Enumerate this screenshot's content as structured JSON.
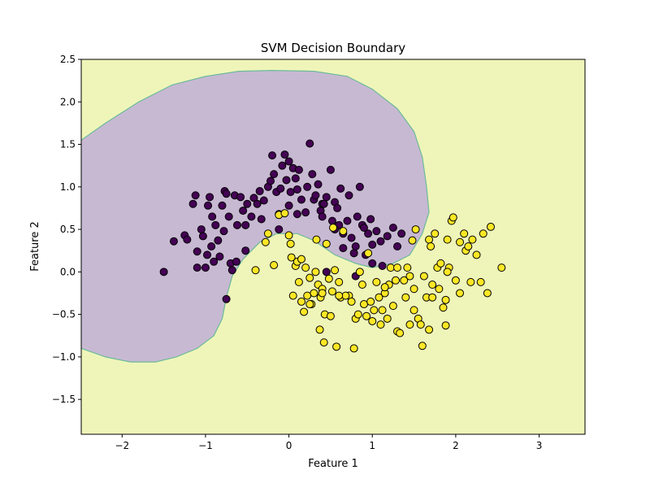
{
  "chart_data": {
    "type": "scatter",
    "title": "SVM Decision Boundary",
    "xlabel": "Feature 1",
    "ylabel": "Feature 2",
    "xlim": [
      -2.49,
      3.55
    ],
    "ylim": [
      -1.91,
      2.5
    ],
    "xticks": [
      -2,
      -1,
      0,
      1,
      2,
      3
    ],
    "xtick_labels": [
      "−2",
      "−1",
      "0",
      "1",
      "2",
      "3"
    ],
    "yticks": [
      -1.5,
      -1.0,
      -0.5,
      0.0,
      0.5,
      1.0,
      1.5,
      2.0,
      2.5
    ],
    "ytick_labels": [
      "−1.5",
      "−1.0",
      "−0.5",
      "0.0",
      "0.5",
      "1.0",
      "1.5",
      "2.0",
      "2.5"
    ],
    "grid": false,
    "colors": {
      "class0": "#440154",
      "class1": "#fde725",
      "region0": "#c8b9d3",
      "region1": "#eff5b9",
      "boundary": "#6cba9a"
    },
    "decision_region_class0": [
      [
        -2.49,
        1.55
      ],
      [
        -2.2,
        1.75
      ],
      [
        -1.8,
        2.0
      ],
      [
        -1.4,
        2.2
      ],
      [
        -1.0,
        2.3
      ],
      [
        -0.6,
        2.36
      ],
      [
        -0.2,
        2.37
      ],
      [
        0.3,
        2.36
      ],
      [
        0.7,
        2.3
      ],
      [
        1.0,
        2.15
      ],
      [
        1.3,
        1.92
      ],
      [
        1.5,
        1.65
      ],
      [
        1.6,
        1.35
      ],
      [
        1.65,
        1.0
      ],
      [
        1.68,
        0.7
      ],
      [
        1.6,
        0.45
      ],
      [
        1.45,
        0.2
      ],
      [
        1.25,
        0.1
      ],
      [
        1.0,
        0.05
      ],
      [
        0.8,
        0.1
      ],
      [
        0.55,
        0.2
      ],
      [
        0.3,
        0.37
      ],
      [
        0.1,
        0.45
      ],
      [
        -0.15,
        0.45
      ],
      [
        -0.35,
        0.35
      ],
      [
        -0.55,
        0.15
      ],
      [
        -0.68,
        -0.05
      ],
      [
        -0.75,
        -0.3
      ],
      [
        -0.8,
        -0.55
      ],
      [
        -0.9,
        -0.75
      ],
      [
        -1.1,
        -0.9
      ],
      [
        -1.35,
        -1.0
      ],
      [
        -1.6,
        -1.06
      ],
      [
        -1.9,
        -1.06
      ],
      [
        -2.2,
        -1.0
      ],
      [
        -2.49,
        -0.9
      ]
    ],
    "series": [
      {
        "name": "class 0",
        "points": [
          [
            -1.5,
            0.0
          ],
          [
            -1.38,
            0.36
          ],
          [
            -1.25,
            0.43
          ],
          [
            -1.22,
            0.38
          ],
          [
            -1.15,
            0.8
          ],
          [
            -1.12,
            0.9
          ],
          [
            -1.1,
            0.05
          ],
          [
            -1.1,
            0.24
          ],
          [
            -1.05,
            0.5
          ],
          [
            -1.03,
            0.42
          ],
          [
            -1.0,
            0.05
          ],
          [
            -0.98,
            0.2
          ],
          [
            -0.97,
            0.78
          ],
          [
            -0.95,
            0.88
          ],
          [
            -0.93,
            0.3
          ],
          [
            -0.92,
            0.65
          ],
          [
            -0.9,
            0.12
          ],
          [
            -0.88,
            0.55
          ],
          [
            -0.85,
            0.37
          ],
          [
            -0.83,
            0.18
          ],
          [
            -0.8,
            0.78
          ],
          [
            -0.78,
            0.48
          ],
          [
            -0.77,
            0.95
          ],
          [
            -0.75,
            0.92
          ],
          [
            -0.72,
            0.65
          ],
          [
            -0.7,
            0.1
          ],
          [
            -0.68,
            0.02
          ],
          [
            -0.65,
            0.9
          ],
          [
            -0.63,
            0.12
          ],
          [
            -0.62,
            0.55
          ],
          [
            -0.58,
            0.88
          ],
          [
            -0.55,
            0.72
          ],
          [
            -0.52,
            0.25
          ],
          [
            -0.5,
            0.8
          ],
          [
            -0.45,
            0.65
          ],
          [
            -0.42,
            0.87
          ],
          [
            -0.38,
            0.8
          ],
          [
            -0.35,
            0.95
          ],
          [
            -0.33,
            0.62
          ],
          [
            -0.3,
            0.84
          ],
          [
            -0.25,
            1.0
          ],
          [
            -0.22,
            1.07
          ],
          [
            -0.2,
            1.37
          ],
          [
            -0.18,
            1.15
          ],
          [
            -0.15,
            0.94
          ],
          [
            -0.12,
            0.5
          ],
          [
            -0.1,
            0.98
          ],
          [
            -0.08,
            1.25
          ],
          [
            -0.05,
            1.38
          ],
          [
            -0.03,
            1.08
          ],
          [
            0.0,
            1.3
          ],
          [
            0.02,
            0.94
          ],
          [
            0.05,
            1.22
          ],
          [
            0.08,
            1.1
          ],
          [
            0.1,
            0.97
          ],
          [
            0.12,
            1.2
          ],
          [
            0.15,
            0.85
          ],
          [
            0.2,
            0.7
          ],
          [
            0.22,
            1.0
          ],
          [
            0.25,
            1.51
          ],
          [
            0.28,
            1.15
          ],
          [
            0.3,
            0.85
          ],
          [
            0.32,
            0.9
          ],
          [
            0.35,
            1.03
          ],
          [
            0.38,
            0.72
          ],
          [
            0.4,
            0.8
          ],
          [
            0.42,
            0.8
          ],
          [
            0.45,
            0.88
          ],
          [
            0.5,
            1.2
          ],
          [
            0.52,
            0.6
          ],
          [
            0.55,
            0.82
          ],
          [
            0.58,
            0.75
          ],
          [
            0.6,
            0.55
          ],
          [
            0.62,
            0.98
          ],
          [
            0.65,
            0.45
          ],
          [
            0.7,
            0.6
          ],
          [
            0.72,
            0.9
          ],
          [
            0.75,
            0.4
          ],
          [
            0.78,
            0.22
          ],
          [
            0.8,
            0.3
          ],
          [
            0.82,
            0.65
          ],
          [
            0.85,
            1.0
          ],
          [
            0.88,
            0.55
          ],
          [
            0.9,
            0.52
          ],
          [
            0.92,
            0.2
          ],
          [
            0.95,
            0.45
          ],
          [
            0.98,
            0.62
          ],
          [
            1.0,
            0.32
          ],
          [
            1.05,
            0.48
          ],
          [
            1.1,
            0.36
          ],
          [
            1.12,
            0.07
          ],
          [
            1.18,
            0.42
          ],
          [
            1.25,
            0.52
          ],
          [
            1.3,
            0.3
          ],
          [
            1.35,
            0.45
          ],
          [
            -0.75,
            -0.32
          ],
          [
            -0.12,
            0.68
          ],
          [
            0.0,
            0.78
          ],
          [
            0.45,
            0.0
          ],
          [
            0.55,
            0.5
          ],
          [
            0.8,
            -0.05
          ],
          [
            1.0,
            0.1
          ],
          [
            0.4,
            0.65
          ],
          [
            0.65,
            0.28
          ],
          [
            0.1,
            0.68
          ],
          [
            -0.52,
            0.55
          ]
        ]
      },
      {
        "name": "class 1",
        "points": [
          [
            -0.4,
            0.02
          ],
          [
            -0.28,
            0.35
          ],
          [
            -0.25,
            0.45
          ],
          [
            -0.18,
            0.08
          ],
          [
            -0.12,
            0.67
          ],
          [
            -0.05,
            0.69
          ],
          [
            0.0,
            0.43
          ],
          [
            0.02,
            0.33
          ],
          [
            0.03,
            0.17
          ],
          [
            0.05,
            -0.28
          ],
          [
            0.08,
            0.07
          ],
          [
            0.1,
            0.12
          ],
          [
            0.12,
            -0.12
          ],
          [
            0.15,
            -0.35
          ],
          [
            0.18,
            -0.47
          ],
          [
            0.2,
            0.05
          ],
          [
            0.22,
            -0.28
          ],
          [
            0.25,
            -0.07
          ],
          [
            0.27,
            -0.38
          ],
          [
            0.3,
            -0.25
          ],
          [
            0.33,
            0.38
          ],
          [
            0.35,
            -0.15
          ],
          [
            0.37,
            -0.68
          ],
          [
            0.38,
            -0.3
          ],
          [
            0.4,
            -0.2
          ],
          [
            0.42,
            -0.83
          ],
          [
            0.43,
            -0.5
          ],
          [
            0.45,
            0.33
          ],
          [
            0.48,
            -0.08
          ],
          [
            0.5,
            -0.52
          ],
          [
            0.52,
            -0.23
          ],
          [
            0.53,
            0.52
          ],
          [
            0.55,
            0.02
          ],
          [
            0.57,
            -0.88
          ],
          [
            0.6,
            -0.12
          ],
          [
            0.62,
            -0.3
          ],
          [
            0.65,
            0.48
          ],
          [
            0.72,
            -0.28
          ],
          [
            0.75,
            -0.35
          ],
          [
            0.78,
            -0.9
          ],
          [
            0.8,
            -0.55
          ],
          [
            0.83,
            -0.5
          ],
          [
            0.85,
            0.0
          ],
          [
            0.88,
            -0.15
          ],
          [
            0.9,
            -0.38
          ],
          [
            0.93,
            -0.52
          ],
          [
            0.95,
            0.22
          ],
          [
            0.98,
            -0.35
          ],
          [
            1.0,
            -0.58
          ],
          [
            1.02,
            -0.45
          ],
          [
            1.05,
            -0.12
          ],
          [
            1.08,
            -0.3
          ],
          [
            1.1,
            -0.62
          ],
          [
            1.12,
            -0.45
          ],
          [
            1.15,
            -0.25
          ],
          [
            1.18,
            -0.55
          ],
          [
            1.2,
            -0.15
          ],
          [
            1.22,
            0.05
          ],
          [
            1.25,
            -0.4
          ],
          [
            1.28,
            -0.1
          ],
          [
            1.3,
            -0.7
          ],
          [
            1.33,
            -0.72
          ],
          [
            1.38,
            -0.1
          ],
          [
            1.4,
            -0.3
          ],
          [
            1.42,
            0.05
          ],
          [
            1.45,
            -0.05
          ],
          [
            1.5,
            -0.2
          ],
          [
            1.5,
            -0.45
          ],
          [
            1.52,
            0.5
          ],
          [
            1.55,
            -0.55
          ],
          [
            1.58,
            -0.62
          ],
          [
            1.6,
            -0.87
          ],
          [
            1.62,
            -0.05
          ],
          [
            1.65,
            -0.3
          ],
          [
            1.68,
            0.38
          ],
          [
            1.7,
            0.3
          ],
          [
            1.72,
            -0.15
          ],
          [
            1.75,
            0.45
          ],
          [
            1.78,
            0.05
          ],
          [
            1.8,
            -0.2
          ],
          [
            1.82,
            0.1
          ],
          [
            1.85,
            -0.42
          ],
          [
            1.88,
            -0.33
          ],
          [
            1.9,
            0.38
          ],
          [
            1.92,
            0.05
          ],
          [
            1.95,
            0.6
          ],
          [
            1.97,
            0.64
          ],
          [
            2.0,
            -0.1
          ],
          [
            2.05,
            0.35
          ],
          [
            2.1,
            0.45
          ],
          [
            2.12,
            0.25
          ],
          [
            2.15,
            0.3
          ],
          [
            2.18,
            -0.12
          ],
          [
            2.2,
            0.38
          ],
          [
            2.25,
            0.2
          ],
          [
            2.3,
            -0.12
          ],
          [
            2.33,
            0.45
          ],
          [
            2.38,
            -0.25
          ],
          [
            2.42,
            0.53
          ],
          [
            2.55,
            0.05
          ],
          [
            1.88,
            -0.63
          ],
          [
            1.68,
            -0.68
          ],
          [
            2.05,
            -0.25
          ],
          [
            1.45,
            -0.62
          ],
          [
            0.68,
            -0.28
          ],
          [
            0.25,
            -0.38
          ],
          [
            0.15,
            0.15
          ],
          [
            0.6,
            -0.28
          ],
          [
            0.32,
            0.0
          ],
          [
            1.72,
            -0.3
          ],
          [
            1.3,
            0.05
          ],
          [
            1.15,
            -0.18
          ],
          [
            0.4,
            -0.25
          ],
          [
            1.9,
            0.0
          ],
          [
            1.48,
            0.37
          ]
        ]
      }
    ]
  }
}
